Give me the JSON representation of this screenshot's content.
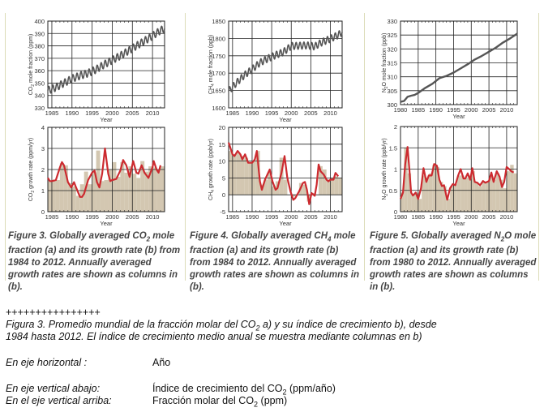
{
  "figures": [
    {
      "id": "fig3",
      "caption": {
        "prefix": "Figure 3. Globally averaged CO",
        "sub": "2",
        "suffix": " mole fraction (a) and its growth rate (b) from 1984 to 2012. Annually averaged growth rates are shown as columns in (b)."
      }
    },
    {
      "id": "fig4",
      "caption": {
        "prefix": "Figure 4. Globally averaged CH",
        "sub": "4",
        "suffix": " mole fraction (a) and its growth rate (b) from 1984 to 2012. Annually averaged growth rates are shown as columns in (b)."
      }
    },
    {
      "id": "fig5",
      "caption": {
        "prefix": "Figure 5. Globally averaged N",
        "sub": "2",
        "suffix": "O mole fraction (a) and its growth rate (b) from 1980 to 2012. Annually averaged growth rates are shown as columns in (b)."
      }
    }
  ],
  "chart_data": [
    {
      "type": "line",
      "title": "Globally averaged CO2 mole fraction",
      "xlabel": "Year",
      "ylabel": "CO2 mole fraction (ppm)",
      "xlim": [
        1984,
        2013
      ],
      "ylim": [
        330,
        400
      ],
      "xticks": [
        1985,
        1990,
        1995,
        2000,
        2005,
        2010
      ],
      "yticks": [
        330,
        340,
        350,
        360,
        370,
        380,
        390,
        400
      ],
      "grid": true,
      "x": [
        1984,
        1986,
        1988,
        1990,
        1992,
        1994,
        1996,
        1998,
        2000,
        2002,
        2004,
        2006,
        2008,
        2010,
        2012,
        2013
      ],
      "values": [
        344,
        346.5,
        350,
        353.5,
        356,
        358,
        361,
        365,
        368.5,
        372,
        376,
        380,
        384,
        388,
        392.5,
        394
      ],
      "seasonal_amplitude": 3
    },
    {
      "type": "area",
      "title": "CO2 growth rate",
      "xlabel": "Year",
      "ylabel": "CO2 growth rate (ppm/yr)",
      "xlim": [
        1984,
        2013
      ],
      "ylim": [
        0,
        4
      ],
      "xticks": [
        1985,
        1990,
        1995,
        2000,
        2005,
        2010
      ],
      "yticks": [
        0,
        1,
        2,
        3,
        4
      ],
      "grid": true,
      "x": [
        1984,
        1984.5,
        1985,
        1986,
        1987,
        1987.5,
        1988,
        1989,
        1989.8,
        1990.5,
        1991,
        1992,
        1992.5,
        1993,
        1994,
        1995,
        1995.6,
        1996.2,
        1996.8,
        1997.5,
        1998.2,
        1999,
        1999.5,
        2000,
        2001,
        2002,
        2002.7,
        2003.5,
        2004.3,
        2005.2,
        2006,
        2006.5,
        2007.3,
        2008,
        2009,
        2010,
        2010.3,
        2011,
        2011.5,
        2012
      ],
      "values": [
        1.6,
        1.45,
        1.45,
        1.5,
        2.1,
        2.35,
        2.2,
        1.4,
        1.15,
        1.4,
        1.15,
        0.7,
        0.7,
        0.85,
        1.5,
        1.85,
        1.95,
        1.4,
        1.15,
        1.8,
        3.0,
        1.8,
        1.45,
        1.5,
        1.55,
        1.95,
        2.45,
        2.2,
        1.65,
        2.4,
        1.85,
        1.8,
        2.2,
        1.85,
        1.6,
        2.1,
        2.4,
        2.0,
        1.85,
        2.2
      ],
      "columns": [
        1.45,
        1.45,
        1.5,
        2.3,
        2.2,
        1.35,
        1.2,
        0.75,
        1.3,
        1.9,
        1.3,
        1.85,
        2.9,
        1.45,
        1.5,
        2.0,
        2.35,
        1.65,
        2.35,
        1.85,
        2.15,
        1.8,
        1.6,
        2.4,
        1.9,
        2.15,
        2.1,
        2.0,
        2.15
      ],
      "column_years_start": 1984
    },
    {
      "type": "line",
      "title": "Globally averaged CH4 mole fraction",
      "xlabel": "Year",
      "ylabel": "CH4 mole fraction (ppb)",
      "xlim": [
        1984,
        2013
      ],
      "ylim": [
        1600,
        1850
      ],
      "xticks": [
        1985,
        1990,
        1995,
        2000,
        2005,
        2010
      ],
      "yticks": [
        1600,
        1650,
        1700,
        1750,
        1800,
        1850
      ],
      "grid": true,
      "x": [
        1984,
        1986,
        1988,
        1990,
        1992,
        1994,
        1996,
        1998,
        2000,
        2002,
        2004,
        2006,
        2008,
        2010,
        2012,
        2013
      ],
      "values": [
        1648,
        1672,
        1694,
        1711,
        1730,
        1742,
        1752,
        1761,
        1778,
        1779,
        1780,
        1777,
        1790,
        1799,
        1810,
        1818
      ],
      "seasonal_amplitude": 10
    },
    {
      "type": "area",
      "title": "CH4 growth rate",
      "xlabel": "Year",
      "ylabel": "CH4 growth rate (ppb/yr)",
      "xlim": [
        1984,
        2013
      ],
      "ylim": [
        -5,
        20
      ],
      "xticks": [
        1985,
        1990,
        1995,
        2000,
        2005,
        2010
      ],
      "yticks": [
        -5,
        0,
        5,
        10,
        15,
        20
      ],
      "grid": true,
      "x": [
        1984,
        1985,
        1985.5,
        1986.3,
        1987,
        1987.5,
        1988.2,
        1989,
        1990,
        1990.7,
        1991.2,
        1992,
        1992.5,
        1993.3,
        1994.5,
        1995.2,
        1996,
        1996.5,
        1997.5,
        1998.3,
        1999,
        1999.8,
        2000.5,
        2001,
        2002,
        2003,
        2003.5,
        2004,
        2004.6,
        2005.2,
        2006,
        2006.5,
        2007,
        2007.5,
        2008.3,
        2009,
        2009.5,
        2010,
        2010.8,
        2011.3,
        2012
      ],
      "values": [
        15.5,
        12,
        11.5,
        13,
        12,
        10.5,
        12,
        9.5,
        9.5,
        10.5,
        13,
        4,
        1.5,
        4.5,
        7.5,
        4,
        1.5,
        2,
        6.5,
        11.5,
        5,
        1,
        -1.5,
        -1,
        1,
        3.5,
        3.8,
        1.5,
        -2.8,
        0.5,
        -0.3,
        3,
        9,
        7,
        6,
        4.5,
        4,
        4.5,
        4.5,
        6.5,
        5.5
      ],
      "columns": [
        13,
        12,
        12.5,
        11.5,
        11,
        9.5,
        10,
        13,
        3,
        4.5,
        6.5,
        2.5,
        4,
        11,
        4.5,
        0,
        -0.5,
        0,
        3.5,
        3,
        -2,
        0.5,
        0,
        8.5,
        7.5,
        4.5,
        5,
        5.5,
        5
      ],
      "column_years_start": 1984
    },
    {
      "type": "line",
      "title": "Globally averaged N2O mole fraction",
      "xlabel": "Year",
      "ylabel": "N2O mole fraction (ppb)",
      "xlim": [
        1980,
        2013
      ],
      "ylim": [
        300,
        330
      ],
      "xticks": [
        1980,
        1985,
        1990,
        1995,
        2000,
        2005,
        2010
      ],
      "yticks": [
        300,
        305,
        310,
        315,
        320,
        325,
        330
      ],
      "grid": true,
      "x": [
        1980,
        1981,
        1982,
        1983,
        1984,
        1985,
        1987,
        1989,
        1991,
        1993,
        1995,
        1997,
        1999,
        2001,
        2003,
        2005,
        2007,
        2009,
        2011,
        2013
      ],
      "values": [
        301,
        301.3,
        302.8,
        303.2,
        303.5,
        304.2,
        306,
        307.5,
        309.5,
        310.3,
        311.5,
        313,
        314.5,
        316.2,
        317.5,
        319,
        320.5,
        322.3,
        323.8,
        325.5
      ]
    },
    {
      "type": "area",
      "title": "N2O growth rate",
      "xlabel": "Year",
      "ylabel": "N2O growth rate (ppb/yr)",
      "xlim": [
        1980,
        2013
      ],
      "ylim": [
        0,
        2
      ],
      "xticks": [
        1980,
        1985,
        1990,
        1995,
        2000,
        2005,
        2010
      ],
      "yticks": [
        0,
        0.5,
        1,
        1.5,
        2
      ],
      "grid": true,
      "x": [
        1980,
        1980.7,
        1981.3,
        1982,
        1982.5,
        1983,
        1983.5,
        1984.3,
        1985,
        1985.8,
        1986.5,
        1987.3,
        1988,
        1988.8,
        1989.5,
        1990.3,
        1991,
        1991.7,
        1992.3,
        1993.2,
        1994,
        1994.8,
        1995.5,
        1996.3,
        1997,
        1997.8,
        1998.3,
        1999,
        1999.7,
        2000.3,
        2001,
        2001.7,
        2002.5,
        2003.3,
        2004,
        2005,
        2005.7,
        2006.3,
        2007.2,
        2008,
        2008.7,
        2009.3,
        2010,
        2010.7,
        2011.3,
        2012
      ],
      "values": [
        0.3,
        0.45,
        1.1,
        1.52,
        1.0,
        0.45,
        0.38,
        0.45,
        0.3,
        0.55,
        1.02,
        0.7,
        0.85,
        0.85,
        1.12,
        1.08,
        0.75,
        0.6,
        0.62,
        0.28,
        0.55,
        0.65,
        0.62,
        0.85,
        1.0,
        0.78,
        0.78,
        0.9,
        0.75,
        1.02,
        0.7,
        0.68,
        0.62,
        0.72,
        0.68,
        0.72,
        0.92,
        0.7,
        0.95,
        0.82,
        0.58,
        0.7,
        1.05,
        1.0,
        0.95,
        0.92
      ],
      "columns": [
        0.45,
        1.5,
        0.9,
        0.4,
        0.45,
        0.3,
        0.85,
        0.8,
        0.9,
        1.1,
        1.05,
        0.7,
        0.6,
        0.3,
        0.6,
        0.65,
        0.85,
        0.85,
        0.8,
        0.85,
        0.95,
        0.7,
        0.6,
        0.7,
        0.7,
        0.85,
        0.75,
        0.9,
        0.75,
        0.55,
        0.95,
        1.1,
        0.9
      ],
      "column_years_start": 1980
    }
  ],
  "notes": {
    "separator": "++++++++++++++++",
    "caption_line1_prefix": "Figura 3. Promedio mundial de la fracción molar del CO",
    "caption_line1_sub": "2",
    "caption_line1_suffix": " a) y su índice de crecimiento b), desde",
    "caption_line2": "1984 hasta 2012. El índice de crecimiento medio anual se muestra mediante columnas en b)",
    "rows": [
      {
        "label": "En eje horizontal :",
        "value_prefix": "Año",
        "value_sub": "",
        "value_suffix": ""
      },
      {
        "label": "En eje vertical abajo:",
        "value_prefix": "Índice de crecimiento del CO",
        "value_sub": "2",
        "value_suffix": " (ppm/año)"
      },
      {
        "label": "En el eje vertical arriba:",
        "value_prefix": "Fracción molar del CO",
        "value_sub": "2",
        "value_suffix": " (ppm)"
      }
    ]
  },
  "colors": {
    "line_red": "#cc2a2f",
    "line_gray": "#555555",
    "fill_tan": "#d3c7b1",
    "grid": "#222222",
    "panel_border": "#dcdcb8"
  }
}
